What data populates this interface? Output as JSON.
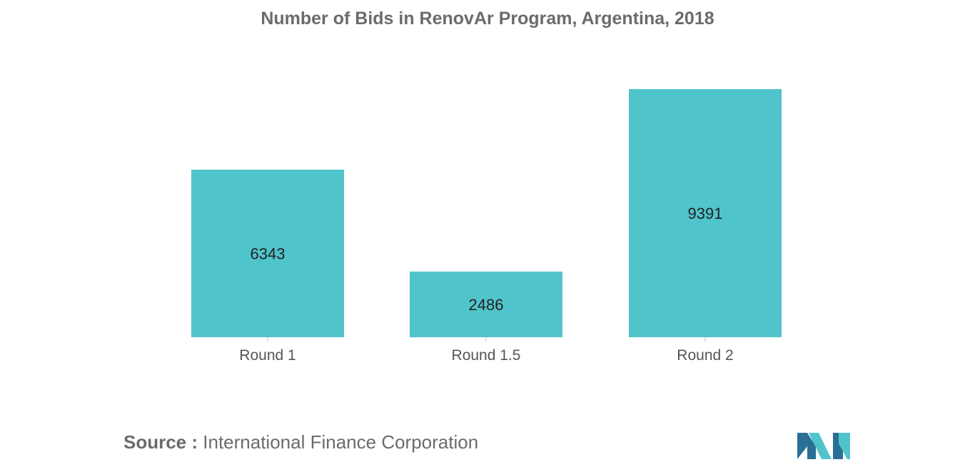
{
  "chart_data": {
    "type": "bar",
    "title": "Number of Bids in RenovAr Program, Argentina, 2018",
    "categories": [
      "Round 1",
      "Round 1.5",
      "Round 2"
    ],
    "values": [
      6343,
      2486,
      9391
    ],
    "data_labels": [
      "6343",
      "2486",
      "9391"
    ],
    "xlabel": "",
    "ylabel": "",
    "ylim": [
      0,
      9391
    ],
    "grid": false,
    "legend": "none",
    "bar_color": "#50c4cb"
  },
  "source": {
    "label": "Source :",
    "text": "International Finance Corporation"
  },
  "logo": {
    "name": "mordor-intelligence-logo",
    "colors": [
      "#2a6f96",
      "#50c4cb"
    ]
  }
}
